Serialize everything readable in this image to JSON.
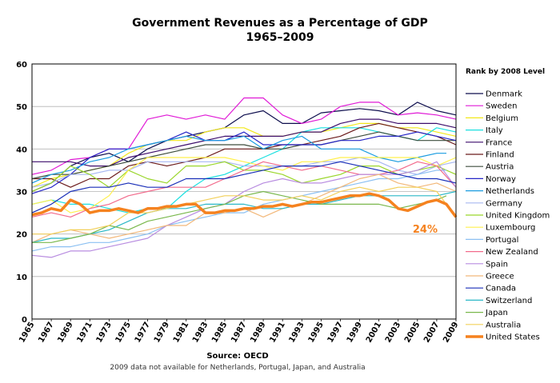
{
  "chart_data": {
    "type": "line",
    "title": "Government Revenues as a Percentage of GDP",
    "subtitle": "1965–2009",
    "source": "Source: OECD",
    "note": "2009 data not available for Netherlands, Portugal, Japan, and Australia",
    "legend_title": "Rank by 2008 Level",
    "legend_position": "right",
    "annotation": "24%",
    "ylim": [
      0,
      60
    ],
    "yticks": [
      0,
      10,
      20,
      30,
      40,
      50,
      60
    ],
    "xlim": [
      1965,
      2009
    ],
    "xticks": [
      1965,
      1967,
      1969,
      1971,
      1973,
      1975,
      1977,
      1979,
      1981,
      1983,
      1985,
      1987,
      1989,
      1991,
      1993,
      1995,
      1997,
      1999,
      2001,
      2003,
      2005,
      2007,
      2009
    ],
    "grid": true,
    "series": [
      {
        "name": "Denmark",
        "color": "#0d0d4d",
        "width": 1.2,
        "x": [
          1965,
          1967,
          1969,
          1971,
          1973,
          1975,
          1977,
          1979,
          1981,
          1983,
          1985,
          1987,
          1989,
          1991,
          1993,
          1995,
          1997,
          1999,
          2001,
          2003,
          2005,
          2007,
          2009
        ],
        "values": [
          30,
          32,
          36,
          38,
          39,
          37,
          40,
          42,
          43,
          44,
          45,
          48,
          49,
          46,
          46,
          48.5,
          49,
          49.5,
          49,
          48,
          51,
          49,
          48
        ]
      },
      {
        "name": "Sweden",
        "color": "#e01ad6",
        "width": 1.2,
        "x": [
          1965,
          1967,
          1969,
          1971,
          1973,
          1975,
          1977,
          1979,
          1981,
          1983,
          1985,
          1987,
          1989,
          1991,
          1993,
          1995,
          1997,
          1999,
          2001,
          2003,
          2005,
          2007,
          2009
        ],
        "values": [
          34,
          35,
          37.5,
          38,
          40,
          40,
          47,
          48,
          47,
          48,
          47,
          52,
          52,
          48,
          46,
          47,
          50,
          51,
          51,
          48,
          48.5,
          48,
          47
        ]
      },
      {
        "name": "Belgium",
        "color": "#f2e81a",
        "width": 1.2,
        "x": [
          1965,
          1967,
          1969,
          1971,
          1973,
          1975,
          1977,
          1979,
          1981,
          1983,
          1985,
          1987,
          1989,
          1991,
          1993,
          1995,
          1997,
          1999,
          2001,
          2003,
          2005,
          2007,
          2009
        ],
        "values": [
          31,
          33,
          34,
          35,
          36,
          39,
          41,
          42,
          42,
          44,
          45,
          45,
          43,
          43,
          44,
          44,
          45,
          46,
          46,
          45,
          45,
          44,
          43
        ]
      },
      {
        "name": "Italy",
        "color": "#1ae0e0",
        "width": 1.2,
        "x": [
          1965,
          1967,
          1969,
          1971,
          1973,
          1975,
          1977,
          1979,
          1981,
          1983,
          1985,
          1987,
          1989,
          1991,
          1993,
          1995,
          1997,
          1999,
          2001,
          2003,
          2005,
          2007,
          2009
        ],
        "values": [
          27,
          28,
          27,
          27,
          26,
          25,
          26,
          26,
          30,
          33,
          34,
          36,
          38,
          40,
          44,
          45,
          45,
          45,
          44,
          43,
          42,
          45,
          44
        ]
      },
      {
        "name": "France",
        "color": "#3d0d6b",
        "width": 1.2,
        "x": [
          1965,
          1967,
          1969,
          1971,
          1973,
          1975,
          1977,
          1979,
          1981,
          1983,
          1985,
          1987,
          1989,
          1991,
          1993,
          1995,
          1997,
          1999,
          2001,
          2003,
          2005,
          2007,
          2009
        ],
        "values": [
          37,
          37,
          37,
          36,
          36,
          38,
          39,
          40,
          41,
          42,
          43,
          43,
          43,
          43,
          44,
          44,
          46,
          47,
          47,
          46,
          46,
          46,
          45
        ]
      },
      {
        "name": "Finland",
        "color": "#6b1a1a",
        "width": 1.2,
        "x": [
          1965,
          1967,
          1969,
          1971,
          1973,
          1975,
          1977,
          1979,
          1981,
          1983,
          1985,
          1987,
          1989,
          1991,
          1993,
          1995,
          1997,
          1999,
          2001,
          2003,
          2005,
          2007,
          2009
        ],
        "values": [
          33,
          33,
          31,
          33,
          33,
          36,
          37,
          36,
          37,
          38,
          40,
          40,
          40,
          41,
          41,
          42,
          43,
          45,
          46,
          45,
          44,
          43,
          41
        ]
      },
      {
        "name": "Austria",
        "color": "#3d4d3d",
        "width": 1.2,
        "x": [
          1965,
          1967,
          1969,
          1971,
          1973,
          1975,
          1977,
          1979,
          1981,
          1983,
          1985,
          1987,
          1989,
          1991,
          1993,
          1995,
          1997,
          1999,
          2001,
          2003,
          2005,
          2007,
          2009
        ],
        "values": [
          33,
          34,
          34,
          35,
          36,
          37,
          38,
          39,
          40,
          41,
          41,
          41,
          40,
          40,
          41,
          41,
          42,
          43,
          44,
          43,
          42,
          42,
          42
        ]
      },
      {
        "name": "Norway",
        "color": "#2626c7",
        "width": 1.2,
        "x": [
          1965,
          1967,
          1969,
          1971,
          1973,
          1975,
          1977,
          1979,
          1981,
          1983,
          1985,
          1987,
          1989,
          1991,
          1993,
          1995,
          1997,
          1999,
          2001,
          2003,
          2005,
          2007,
          2009
        ],
        "values": [
          29.5,
          31,
          34,
          38,
          40,
          40,
          41,
          42,
          44,
          42,
          42,
          44,
          41,
          41,
          41,
          41,
          42,
          42,
          43,
          43,
          44,
          43,
          42
        ]
      },
      {
        "name": "Netherlands",
        "color": "#1a9ce0",
        "width": 1.2,
        "x": [
          1965,
          1967,
          1969,
          1971,
          1973,
          1975,
          1977,
          1979,
          1981,
          1983,
          1985,
          1987,
          1989,
          1991,
          1993,
          1995,
          1997,
          1999,
          2001,
          2003,
          2005,
          2007,
          2008
        ],
        "values": [
          32,
          34,
          35,
          37,
          38,
          40,
          41,
          42,
          43,
          42,
          42,
          43,
          40,
          42,
          43,
          40,
          40,
          40,
          38,
          37,
          38,
          39,
          39
        ]
      },
      {
        "name": "Germany",
        "color": "#a8b8f2",
        "width": 1.2,
        "x": [
          1965,
          1967,
          1969,
          1971,
          1973,
          1975,
          1977,
          1979,
          1981,
          1983,
          1985,
          1987,
          1989,
          1991,
          1993,
          1995,
          1997,
          1999,
          2001,
          2003,
          2005,
          2007,
          2009
        ],
        "values": [
          31,
          32,
          34,
          34,
          35,
          35,
          37,
          37,
          37,
          37,
          37,
          36,
          36,
          36,
          36,
          37,
          37,
          38,
          37,
          35,
          34,
          36,
          37
        ]
      },
      {
        "name": "United Kingdom",
        "color": "#9ad62b",
        "width": 1.2,
        "x": [
          1965,
          1967,
          1969,
          1971,
          1973,
          1975,
          1977,
          1979,
          1981,
          1983,
          1985,
          1987,
          1989,
          1991,
          1993,
          1995,
          1997,
          1999,
          2001,
          2003,
          2005,
          2007,
          2009
        ],
        "values": [
          30,
          32,
          36,
          34,
          31,
          35,
          33,
          32,
          36,
          36,
          37,
          35,
          35,
          34,
          32,
          33,
          34,
          36,
          36,
          34,
          35,
          36,
          34
        ]
      },
      {
        "name": "Luxembourg",
        "color": "#fff04d",
        "width": 1.2,
        "x": [
          1965,
          1967,
          1969,
          1971,
          1973,
          1975,
          1977,
          1979,
          1981,
          1983,
          1985,
          1987,
          1989,
          1991,
          1993,
          1995,
          1997,
          1999,
          2001,
          2003,
          2005,
          2007,
          2009
        ],
        "values": [
          27,
          28,
          25,
          26,
          29,
          35,
          38,
          38,
          38,
          38,
          38,
          37,
          36,
          35,
          37,
          37,
          38,
          38,
          38,
          38,
          38,
          36,
          38
        ]
      },
      {
        "name": "Portugal",
        "color": "#8cc0f2",
        "width": 1.2,
        "x": [
          1965,
          1967,
          1969,
          1971,
          1973,
          1975,
          1977,
          1979,
          1981,
          1983,
          1985,
          1987,
          1989,
          1991,
          1993,
          1995,
          1997,
          1999,
          2001,
          2003,
          2005,
          2007,
          2008
        ],
        "values": [
          16,
          17,
          17,
          18,
          18,
          19,
          20,
          22,
          23,
          24,
          25,
          25,
          27,
          28,
          29,
          30,
          31,
          32,
          33,
          33,
          34,
          35,
          35
        ]
      },
      {
        "name": "New Zealand",
        "color": "#f26b8c",
        "width": 1.2,
        "x": [
          1965,
          1967,
          1969,
          1971,
          1973,
          1975,
          1977,
          1979,
          1981,
          1983,
          1985,
          1987,
          1989,
          1991,
          1993,
          1995,
          1997,
          1999,
          2001,
          2003,
          2005,
          2007,
          2009
        ],
        "values": [
          24,
          25,
          24,
          26,
          27,
          29,
          30,
          31,
          31,
          31,
          33,
          35,
          37,
          36,
          35,
          36,
          35,
          34,
          34,
          35,
          37,
          36,
          31
        ]
      },
      {
        "name": "Spain",
        "color": "#b88ce0",
        "width": 1.2,
        "x": [
          1965,
          1967,
          1969,
          1971,
          1973,
          1975,
          1977,
          1979,
          1981,
          1983,
          1985,
          1987,
          1989,
          1991,
          1993,
          1995,
          1997,
          1999,
          2001,
          2003,
          2005,
          2007,
          2009
        ],
        "values": [
          15,
          14.5,
          16,
          16,
          17,
          18,
          19,
          22,
          24,
          26,
          27,
          30,
          32,
          33,
          32,
          32,
          33,
          34,
          34,
          34,
          35,
          37,
          31
        ]
      },
      {
        "name": "Greece",
        "color": "#f2b87a",
        "width": 1.2,
        "x": [
          1965,
          1967,
          1969,
          1971,
          1973,
          1975,
          1977,
          1979,
          1981,
          1983,
          1985,
          1987,
          1989,
          1991,
          1993,
          1995,
          1997,
          1999,
          2001,
          2003,
          2005,
          2007,
          2009
        ],
        "values": [
          18,
          20,
          21,
          20,
          19,
          20,
          21,
          22,
          22,
          25,
          25,
          26,
          24,
          26,
          27,
          29,
          31,
          33,
          34,
          32,
          31,
          32,
          30
        ]
      },
      {
        "name": "Canada",
        "color": "#1a2fb8",
        "width": 1.2,
        "x": [
          1965,
          1967,
          1969,
          1971,
          1973,
          1975,
          1977,
          1979,
          1981,
          1983,
          1985,
          1987,
          1989,
          1991,
          1993,
          1995,
          1997,
          1999,
          2001,
          2003,
          2005,
          2007,
          2009
        ],
        "values": [
          25,
          27,
          30,
          31,
          31,
          32,
          31,
          31,
          33,
          33,
          33,
          34,
          35,
          36,
          36,
          36,
          37,
          36,
          35,
          34,
          33,
          33,
          32
        ]
      },
      {
        "name": "Switzerland",
        "color": "#2bb8c7",
        "width": 1.2,
        "x": [
          1965,
          1967,
          1969,
          1971,
          1973,
          1975,
          1977,
          1979,
          1981,
          1983,
          1985,
          1987,
          1989,
          1991,
          1993,
          1995,
          1997,
          1999,
          2001,
          2003,
          2005,
          2007,
          2009
        ],
        "values": [
          18,
          19,
          19,
          20,
          21,
          23,
          25,
          26,
          26,
          27,
          27,
          27,
          26,
          26,
          27,
          27,
          28,
          29,
          29,
          29,
          29,
          29,
          30
        ]
      },
      {
        "name": "Japan",
        "color": "#7ab84d",
        "width": 1.2,
        "x": [
          1965,
          1967,
          1969,
          1971,
          1973,
          1975,
          1977,
          1979,
          1981,
          1983,
          1985,
          1987,
          1989,
          1991,
          1993,
          1995,
          1997,
          1999,
          2001,
          2003,
          2005,
          2007,
          2008
        ],
        "values": [
          18,
          18,
          19,
          20,
          22,
          21,
          23,
          24,
          25,
          26,
          27,
          29,
          30,
          29,
          28,
          27,
          27,
          27,
          27,
          26,
          27,
          28,
          29
        ]
      },
      {
        "name": "Australia",
        "color": "#f2d05a",
        "width": 1.2,
        "x": [
          1965,
          1967,
          1969,
          1971,
          1973,
          1975,
          1977,
          1979,
          1981,
          1983,
          1985,
          1987,
          1989,
          1991,
          1993,
          1995,
          1997,
          1999,
          2001,
          2003,
          2005,
          2007,
          2008
        ],
        "values": [
          20,
          20,
          21,
          21,
          22,
          25,
          25,
          26,
          27,
          28,
          29,
          29,
          28,
          28,
          29,
          28,
          30,
          31,
          30,
          31,
          31,
          30,
          27
        ]
      },
      {
        "name": "United States",
        "color": "#f5821f",
        "width": 3.5,
        "x": [
          1965,
          1966,
          1967,
          1968,
          1969,
          1970,
          1971,
          1972,
          1973,
          1974,
          1975,
          1976,
          1977,
          1978,
          1979,
          1980,
          1981,
          1982,
          1983,
          1984,
          1985,
          1986,
          1987,
          1988,
          1989,
          1990,
          1991,
          1992,
          1993,
          1994,
          1995,
          1996,
          1997,
          1998,
          1999,
          2000,
          2001,
          2002,
          2003,
          2004,
          2005,
          2006,
          2007,
          2008,
          2009
        ],
        "values": [
          24.5,
          25,
          26,
          25.5,
          28,
          27,
          25,
          25.5,
          25.5,
          26,
          25.5,
          25,
          26,
          26,
          26.5,
          26.5,
          27,
          27,
          25,
          25,
          25.5,
          25.5,
          26,
          26,
          26.5,
          26.5,
          27,
          26.5,
          27,
          27.5,
          27.5,
          28,
          28.5,
          29,
          29,
          29.5,
          29,
          28,
          26,
          25.5,
          26.5,
          27.5,
          28,
          27,
          24
        ]
      }
    ]
  }
}
